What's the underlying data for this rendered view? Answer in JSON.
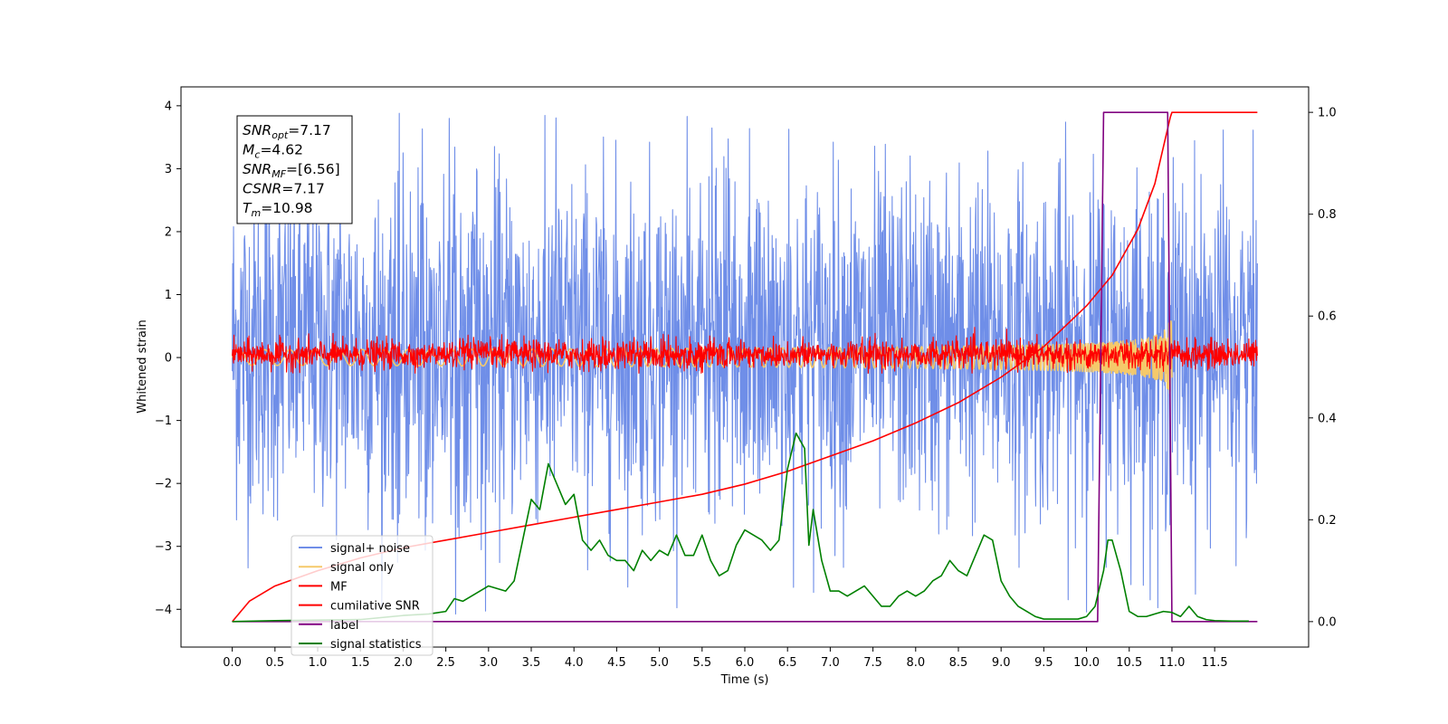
{
  "chart_data": {
    "type": "line",
    "xlabel": "Time (s)",
    "ylabel": "Whitened strain",
    "xlim": [
      -0.6,
      12.6
    ],
    "ylim_left": [
      -4.6,
      4.3
    ],
    "ylim_right": [
      -0.05,
      1.05
    ],
    "x_ticks": [
      0.0,
      0.5,
      1.0,
      1.5,
      2.0,
      2.5,
      3.0,
      3.5,
      4.0,
      4.5,
      5.0,
      5.5,
      6.0,
      6.5,
      7.0,
      7.5,
      8.0,
      8.5,
      9.0,
      9.5,
      10.0,
      10.5,
      11.0,
      11.5
    ],
    "x_tick_labels": [
      "0.0",
      "0.5",
      "1.0",
      "1.5",
      "2.0",
      "2.5",
      "3.0",
      "3.5",
      "4.0",
      "4.5",
      "5.0",
      "5.5",
      "6.0",
      "6.5",
      "7.0",
      "7.5",
      "8.0",
      "8.5",
      "9.0",
      "9.5",
      "10.0",
      "10.5",
      "11.0",
      "11.5"
    ],
    "y_left_ticks": [
      4,
      3,
      2,
      1,
      0,
      -1,
      -2,
      -3,
      -4
    ],
    "y_left_tick_labels": [
      "4",
      "3",
      "2",
      "1",
      "0",
      "−1",
      "−2",
      "−3",
      "−4"
    ],
    "y_right_ticks": [
      1.0,
      0.8,
      0.6,
      0.4,
      0.2,
      0.0
    ],
    "y_right_tick_labels": [
      "1.0",
      "0.8",
      "0.6",
      "0.4",
      "0.2",
      "0.0"
    ],
    "legend_position": "lower-left",
    "series": [
      {
        "name": "signal+ noise",
        "axis": "left",
        "color": "#6f8ee8",
        "kind": "noise",
        "x_range": [
          0.0,
          12.0
        ],
        "typical_range": [
          -2.8,
          3.2
        ],
        "extreme_range": [
          -4.1,
          3.9
        ]
      },
      {
        "name": "signal only",
        "axis": "left",
        "color": "#f5c96a",
        "kind": "chirp",
        "x_range": [
          0.0,
          11.0
        ],
        "peak_amplitude": 0.6,
        "peak_time": 10.98
      },
      {
        "name": "MF",
        "axis": "left",
        "color": "#ff0000",
        "kind": "noise",
        "x_range": [
          0.0,
          12.0
        ],
        "typical_range": [
          -0.2,
          0.3
        ],
        "extreme_range": [
          -0.25,
          0.5
        ]
      },
      {
        "name": "cumilative SNR",
        "axis": "right",
        "color": "#ff0000",
        "x": [
          0.0,
          0.2,
          0.5,
          1.0,
          1.5,
          2.0,
          2.5,
          3.0,
          3.5,
          4.0,
          4.5,
          5.0,
          5.5,
          6.0,
          6.5,
          7.0,
          7.5,
          8.0,
          8.5,
          9.0,
          9.5,
          10.0,
          10.3,
          10.6,
          10.8,
          10.98,
          11.0,
          12.0
        ],
        "y": [
          0.0,
          0.04,
          0.07,
          0.1,
          0.125,
          0.145,
          0.16,
          0.175,
          0.19,
          0.205,
          0.22,
          0.235,
          0.25,
          0.27,
          0.295,
          0.325,
          0.355,
          0.39,
          0.43,
          0.48,
          0.54,
          0.62,
          0.68,
          0.77,
          0.86,
          0.99,
          1.0,
          1.0
        ]
      },
      {
        "name": "label",
        "axis": "right",
        "color": "#800080",
        "x": [
          0.0,
          10.13,
          10.2,
          10.95,
          11.0,
          12.0
        ],
        "y": [
          0.0,
          0.0,
          1.0,
          1.0,
          0.0,
          0.0
        ]
      },
      {
        "name": "signal statistics",
        "axis": "right",
        "color": "#008000",
        "x": [
          0.0,
          0.5,
          1.0,
          1.5,
          2.0,
          2.3,
          2.5,
          2.6,
          2.7,
          2.8,
          3.0,
          3.2,
          3.3,
          3.4,
          3.5,
          3.6,
          3.7,
          3.8,
          3.9,
          4.0,
          4.1,
          4.2,
          4.3,
          4.4,
          4.5,
          4.6,
          4.7,
          4.8,
          4.9,
          5.0,
          5.1,
          5.2,
          5.3,
          5.4,
          5.5,
          5.6,
          5.7,
          5.8,
          5.9,
          6.0,
          6.1,
          6.2,
          6.3,
          6.4,
          6.5,
          6.6,
          6.7,
          6.75,
          6.8,
          6.9,
          7.0,
          7.1,
          7.2,
          7.3,
          7.4,
          7.5,
          7.6,
          7.7,
          7.8,
          7.9,
          8.0,
          8.1,
          8.2,
          8.3,
          8.4,
          8.5,
          8.6,
          8.7,
          8.8,
          8.9,
          9.0,
          9.1,
          9.2,
          9.3,
          9.4,
          9.5,
          9.6,
          9.7,
          9.8,
          9.9,
          10.0,
          10.1,
          10.2,
          10.25,
          10.3,
          10.4,
          10.5,
          10.6,
          10.7,
          10.8,
          10.9,
          11.0,
          11.1,
          11.2,
          11.3,
          11.4,
          11.5,
          11.7,
          11.9
        ],
        "y": [
          0.0,
          0.002,
          0.003,
          0.004,
          0.012,
          0.015,
          0.02,
          0.045,
          0.04,
          0.05,
          0.07,
          0.06,
          0.08,
          0.16,
          0.24,
          0.22,
          0.31,
          0.27,
          0.23,
          0.25,
          0.16,
          0.14,
          0.16,
          0.13,
          0.12,
          0.12,
          0.1,
          0.14,
          0.12,
          0.14,
          0.13,
          0.17,
          0.13,
          0.13,
          0.17,
          0.12,
          0.09,
          0.1,
          0.15,
          0.18,
          0.17,
          0.16,
          0.14,
          0.16,
          0.3,
          0.37,
          0.34,
          0.15,
          0.22,
          0.12,
          0.06,
          0.06,
          0.05,
          0.06,
          0.07,
          0.05,
          0.03,
          0.03,
          0.05,
          0.06,
          0.05,
          0.06,
          0.08,
          0.09,
          0.12,
          0.1,
          0.09,
          0.13,
          0.17,
          0.16,
          0.08,
          0.05,
          0.03,
          0.02,
          0.01,
          0.005,
          0.005,
          0.005,
          0.005,
          0.005,
          0.01,
          0.03,
          0.1,
          0.16,
          0.16,
          0.1,
          0.02,
          0.01,
          0.01,
          0.015,
          0.02,
          0.018,
          0.01,
          0.03,
          0.01,
          0.004,
          0.002,
          0.001,
          0.001
        ]
      }
    ],
    "annotation": {
      "lines": [
        {
          "sym": "SNR",
          "sub": "opt",
          "value": "=7.17"
        },
        {
          "sym": "M",
          "sub": "c",
          "value": "=4.62"
        },
        {
          "sym": "SNR",
          "sub": "MF",
          "value": "=[6.56]"
        },
        {
          "sym": "CSNR",
          "sub": "",
          "value": "=7.17"
        },
        {
          "sym": "T",
          "sub": "m",
          "value": "=10.98"
        }
      ]
    }
  }
}
